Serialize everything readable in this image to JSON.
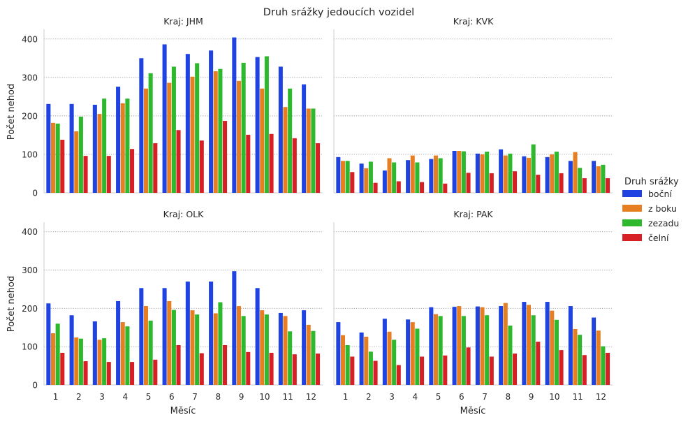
{
  "chart_data": {
    "type": "bar",
    "title": "Druh srážky jedoucích vozidel",
    "xlabel": "Měsíc",
    "ylabel": "Počet nehod",
    "ylim": [
      0,
      425
    ],
    "yticks": [
      0,
      100,
      200,
      300,
      400
    ],
    "grid": "horizontal-dotted",
    "legend": {
      "title": "Druh srážky",
      "placement": "right"
    },
    "categories": [
      "1",
      "2",
      "3",
      "4",
      "5",
      "6",
      "7",
      "8",
      "9",
      "10",
      "11",
      "12"
    ],
    "series_names": [
      "boční",
      "z boku",
      "zezadu",
      "čelní"
    ],
    "colors": [
      "#1f43e0",
      "#e67e22",
      "#2eb82e",
      "#d62026"
    ],
    "panels": [
      {
        "title": "Kraj: JHM",
        "series": [
          {
            "name": "boční",
            "values": [
              231,
              231,
              229,
              276,
              350,
              386,
              361,
              370,
              404,
              353,
              328,
              282
            ]
          },
          {
            "name": "z boku",
            "values": [
              182,
              160,
              205,
              233,
              271,
              286,
              302,
              316,
              291,
              271,
              223,
              219
            ]
          },
          {
            "name": "zezadu",
            "values": [
              180,
              198,
              245,
              245,
              311,
              328,
              337,
              322,
              338,
              355,
              271,
              219
            ]
          },
          {
            "name": "čelní",
            "values": [
              138,
              96,
              96,
              114,
              129,
              163,
              136,
              187,
              151,
              153,
              142,
              129
            ]
          }
        ]
      },
      {
        "title": "Kraj: KVK",
        "series": [
          {
            "name": "boční",
            "values": [
              93,
              76,
              58,
              85,
              88,
              109,
              102,
              113,
              95,
              93,
              83,
              83
            ]
          },
          {
            "name": "z boku",
            "values": [
              83,
              64,
              90,
              97,
              97,
              109,
              100,
              97,
              91,
              100,
              106,
              69
            ]
          },
          {
            "name": "zezadu",
            "values": [
              83,
              81,
              79,
              79,
              90,
              108,
              107,
              102,
              126,
              107,
              65,
              73
            ]
          },
          {
            "name": "čelní",
            "values": [
              54,
              26,
              30,
              28,
              24,
              52,
              51,
              56,
              47,
              51,
              38,
              38
            ]
          }
        ]
      },
      {
        "title": "Kraj: OLK",
        "series": [
          {
            "name": "boční",
            "values": [
              213,
              182,
              166,
              219,
              253,
              253,
              270,
              270,
              297,
              253,
              188,
              195
            ]
          },
          {
            "name": "z boku",
            "values": [
              135,
              124,
              118,
              164,
              206,
              219,
              195,
              187,
              206,
              195,
              180,
              157
            ]
          },
          {
            "name": "zezadu",
            "values": [
              160,
              121,
              122,
              153,
              168,
              196,
              184,
              216,
              180,
              184,
              140,
              141
            ]
          },
          {
            "name": "čelní",
            "values": [
              84,
              62,
              60,
              60,
              66,
              104,
              83,
              104,
              86,
              84,
              80,
              82
            ]
          }
        ]
      },
      {
        "title": "Kraj: PAK",
        "series": [
          {
            "name": "boční",
            "values": [
              164,
              137,
              173,
              171,
              203,
              204,
              205,
              206,
              217,
              217,
              206,
              176
            ]
          },
          {
            "name": "z boku",
            "values": [
              130,
              126,
              139,
              164,
              185,
              206,
              203,
              214,
              209,
              194,
              146,
              142
            ]
          },
          {
            "name": "zezadu",
            "values": [
              104,
              87,
              118,
              147,
              180,
              180,
              182,
              155,
              182,
              170,
              131,
              101
            ]
          },
          {
            "name": "čelní",
            "values": [
              74,
              63,
              52,
              74,
              77,
              98,
              74,
              82,
              113,
              91,
              78,
              84
            ]
          }
        ]
      }
    ]
  }
}
